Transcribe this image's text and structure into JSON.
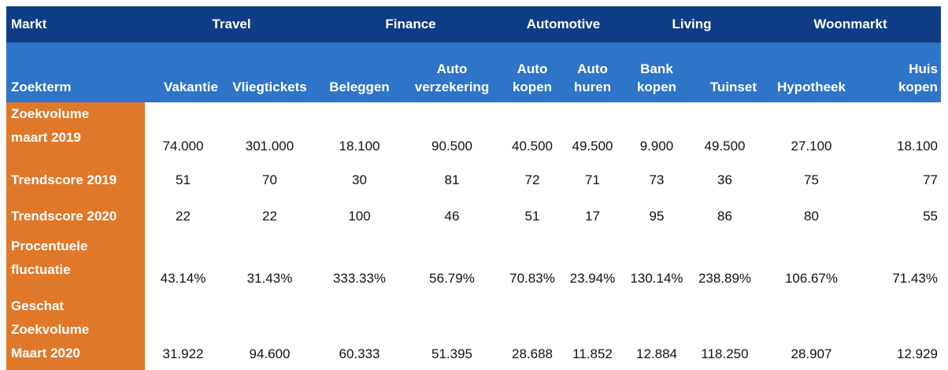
{
  "header": {
    "markt_label": "Markt",
    "groups": [
      "Travel",
      "Finance",
      "Automotive",
      "Living",
      "Woonmarkt"
    ]
  },
  "subheader": {
    "zoekterm_label": "Zoekterm",
    "terms": [
      [
        "Vakantie"
      ],
      [
        "Vliegtickets"
      ],
      [
        "Beleggen"
      ],
      [
        "Auto",
        "verzekering"
      ],
      [
        "Auto",
        "kopen"
      ],
      [
        "Auto",
        "huren"
      ],
      [
        "Bank",
        "kopen"
      ],
      [
        "Tuinset"
      ],
      [
        "Hypotheek"
      ],
      [
        "Huis",
        "kopen"
      ]
    ]
  },
  "rows": [
    {
      "label": [
        "Zoekvolume",
        "maart 2019"
      ],
      "values": [
        "74.000",
        "301.000",
        "18.100",
        "90.500",
        "40.500",
        "49.500",
        "9.900",
        "49.500",
        "27.100",
        "18.100"
      ]
    },
    {
      "label": [
        "Trendscore 2019"
      ],
      "values": [
        "51",
        "70",
        "30",
        "81",
        "72",
        "71",
        "73",
        "36",
        "75",
        "77"
      ]
    },
    {
      "label": [
        "Trendscore 2020"
      ],
      "values": [
        "22",
        "22",
        "100",
        "46",
        "51",
        "17",
        "95",
        "86",
        "80",
        "55"
      ]
    },
    {
      "label": [
        "Procentuele",
        "fluctuatie"
      ],
      "values": [
        "43.14%",
        "31.43%",
        "333.33%",
        "56.79%",
        "70.83%",
        "23.94%",
        "130.14%",
        "238.89%",
        "106.67%",
        "71.43%"
      ]
    },
    {
      "label": [
        "Geschat",
        "Zoekvolume",
        "Maart 2020"
      ],
      "values": [
        "31.922",
        "94.600",
        "60.333",
        "51.395",
        "28.688",
        "11.852",
        "12.884",
        "118.250",
        "28.907",
        "12.929"
      ]
    }
  ],
  "colors": {
    "markt_header_bg": "#0f3d85",
    "zoekterm_header_bg": "#2e74c9",
    "row_label_bg": "#e0782a"
  }
}
